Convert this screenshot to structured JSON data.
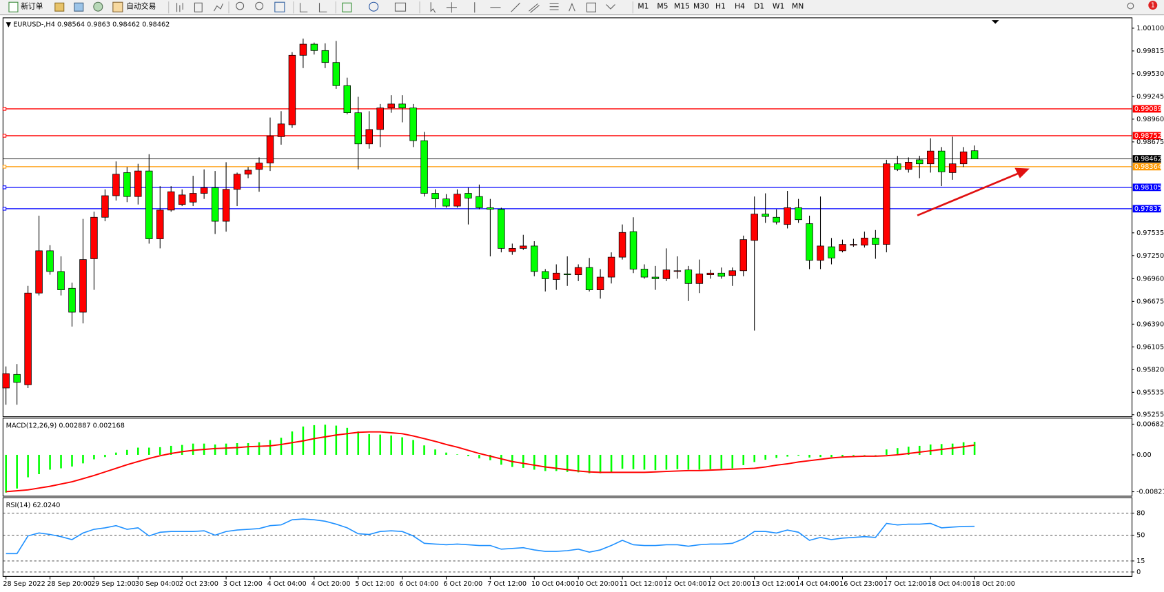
{
  "toolbar": {
    "new_order": "新订单",
    "auto_trading": "自动交易",
    "timeframes": [
      "M1",
      "M5",
      "M15",
      "M30",
      "H1",
      "H4",
      "D1",
      "W1",
      "MN"
    ],
    "badge": 1
  },
  "chart_data": [
    {
      "type": "candlestick",
      "title": "EURUSD-,H4",
      "categories": [
        "28 Sep 2022",
        null,
        null,
        null,
        "28 Sep 20:00",
        null,
        null,
        null,
        "29 Sep 12:00",
        null,
        null,
        null,
        "30 Sep 04:00",
        null,
        null,
        null,
        "2 Oct 23:00",
        null,
        null,
        null,
        "3 Oct 12:00",
        null,
        null,
        null,
        "4 Oct 04:00",
        null,
        null,
        null,
        "4 Oct 20:00",
        null,
        null,
        null,
        "5 Oct 12:00",
        null,
        null,
        null,
        "6 Oct 04:00",
        null,
        null,
        null,
        "6 Oct 20:00",
        null,
        null,
        null,
        "7 Oct 12:00",
        null,
        null,
        null,
        "10 Oct 04:00",
        null,
        null,
        null,
        "10 Oct 20:00",
        null,
        null,
        null,
        "11 Oct 12:00",
        null,
        null,
        null,
        "12 Oct 04:00",
        null,
        null,
        null,
        "12 Oct 20:00",
        null,
        null,
        null,
        "13 Oct 12:00",
        null,
        null,
        null,
        "14 Oct 04:00",
        null,
        null,
        null,
        "16 Oct 23:00",
        null,
        null,
        null,
        "17 Oct 12:00",
        null,
        null,
        null,
        "18 Oct 04:00",
        null,
        null,
        null,
        "18 Oct 20:00"
      ],
      "open": [
        0.9559,
        0.9576,
        0.9563,
        0.9678,
        0.9731,
        0.9705,
        0.9684,
        0.9654,
        0.9721,
        0.9773,
        0.98,
        0.9829,
        0.9799,
        0.9831,
        0.9746,
        0.9782,
        0.9789,
        0.9792,
        0.9803,
        0.981,
        0.9768,
        0.9808,
        0.9827,
        0.9833,
        0.9841,
        0.9874,
        0.9889,
        0.9976,
        0.999,
        0.9982,
        0.9967,
        0.9938,
        0.9904,
        0.9865,
        0.9883,
        0.991,
        0.9915,
        0.991,
        0.9869,
        0.9803,
        0.9796,
        0.9787,
        0.9803,
        0.9799,
        0.9785,
        0.9783,
        0.973,
        0.9734,
        0.9737,
        0.9705,
        0.9695,
        0.9702,
        0.9701,
        0.971,
        0.9682,
        0.9698,
        0.9723,
        0.9755,
        0.9708,
        0.9698,
        0.9696,
        0.9706,
        0.9707,
        0.969,
        0.9701,
        0.9703,
        0.97,
        0.9706,
        0.9744,
        0.9777,
        0.9773,
        0.9764,
        0.9785,
        0.9765,
        0.9719,
        0.9736,
        0.9731,
        0.9738,
        0.9738,
        0.9747,
        0.9739,
        0.984,
        0.9833,
        0.9845,
        0.984,
        0.9856,
        0.9829,
        0.984,
        0.98564
      ],
      "high": [
        0.9586,
        0.9589,
        0.9687,
        0.9775,
        0.9738,
        0.9724,
        0.9691,
        0.9771,
        0.978,
        0.9808,
        0.9843,
        0.9836,
        0.984,
        0.9852,
        0.9812,
        0.9812,
        0.9808,
        0.9825,
        0.9833,
        0.9831,
        0.9842,
        0.9829,
        0.9836,
        0.9848,
        0.9898,
        0.9906,
        0.998,
        0.9997,
        0.9992,
        0.9991,
        0.9994,
        0.9948,
        0.9924,
        0.9906,
        0.9915,
        0.9926,
        0.9926,
        0.9915,
        0.988,
        0.9808,
        0.9802,
        0.9808,
        0.981,
        0.9814,
        0.9796,
        0.9785,
        0.974,
        0.9751,
        0.9743,
        0.9708,
        0.9714,
        0.9724,
        0.9714,
        0.9722,
        0.9708,
        0.9729,
        0.9764,
        0.9773,
        0.9714,
        0.9712,
        0.9734,
        0.9724,
        0.9712,
        0.972,
        0.9707,
        0.971,
        0.971,
        0.975,
        0.9799,
        0.9803,
        0.9783,
        0.9806,
        0.9796,
        0.9775,
        0.9799,
        0.9747,
        0.9745,
        0.9746,
        0.9755,
        0.9757,
        0.9845,
        0.985,
        0.9848,
        0.985,
        0.9872,
        0.9861,
        0.9874,
        0.9861,
        0.9863
      ],
      "low": [
        0.9538,
        0.9538,
        0.9559,
        0.9675,
        0.9701,
        0.9675,
        0.9636,
        0.964,
        0.9682,
        0.9768,
        0.9794,
        0.9792,
        0.9789,
        0.974,
        0.9734,
        0.978,
        0.9787,
        0.9787,
        0.9796,
        0.9752,
        0.9755,
        0.9787,
        0.9822,
        0.9805,
        0.9831,
        0.9864,
        0.9885,
        0.996,
        0.9977,
        0.996,
        0.9934,
        0.9902,
        0.9833,
        0.9859,
        0.9861,
        0.9904,
        0.9892,
        0.9861,
        0.9799,
        0.9785,
        0.9785,
        0.9785,
        0.9764,
        0.9783,
        0.9724,
        0.9729,
        0.9726,
        0.9732,
        0.9699,
        0.968,
        0.9682,
        0.9687,
        0.9693,
        0.968,
        0.9671,
        0.969,
        0.972,
        0.9703,
        0.9696,
        0.9682,
        0.9693,
        0.9696,
        0.9668,
        0.9678,
        0.9696,
        0.9696,
        0.9687,
        0.9699,
        0.9631,
        0.9766,
        0.9764,
        0.9759,
        0.9766,
        0.9708,
        0.9708,
        0.9714,
        0.9729,
        0.9736,
        0.9735,
        0.9721,
        0.9729,
        0.9831,
        0.9829,
        0.9822,
        0.9829,
        0.9812,
        0.982,
        0.9836,
        0.98462
      ],
      "close": [
        0.9577,
        0.9566,
        0.9678,
        0.9731,
        0.9705,
        0.9682,
        0.9654,
        0.972,
        0.9773,
        0.98,
        0.9827,
        0.9799,
        0.9831,
        0.9746,
        0.9782,
        0.9805,
        0.9801,
        0.9803,
        0.981,
        0.9768,
        0.9808,
        0.9827,
        0.9832,
        0.9841,
        0.9875,
        0.989,
        0.9976,
        0.999,
        0.9982,
        0.9967,
        0.9938,
        0.9904,
        0.9865,
        0.9883,
        0.991,
        0.9915,
        0.991,
        0.9869,
        0.9803,
        0.9796,
        0.9787,
        0.9802,
        0.9797,
        0.9785,
        0.9783,
        0.9734,
        0.9734,
        0.9737,
        0.9705,
        0.9696,
        0.9703,
        0.9701,
        0.971,
        0.9682,
        0.9698,
        0.9723,
        0.9754,
        0.9708,
        0.9698,
        0.9696,
        0.9707,
        0.9706,
        0.969,
        0.9702,
        0.9703,
        0.9699,
        0.9706,
        0.9745,
        0.9777,
        0.9774,
        0.9767,
        0.9785,
        0.977,
        0.9719,
        0.9737,
        0.9722,
        0.9739,
        0.9739,
        0.9747,
        0.9739,
        0.984,
        0.9833,
        0.9842,
        0.984,
        0.9856,
        0.983,
        0.984,
        0.9855,
        0.98462
      ],
      "up_color": "#ff0000",
      "down_color": "#00ff00",
      "bid_line_color": "#000000",
      "levels": [
        {
          "value": 0.99089,
          "color": "#ff0000"
        },
        {
          "value": 0.98752,
          "color": "#ff0000"
        },
        {
          "value": 0.98364,
          "color": "#ff9900"
        },
        {
          "value": 0.98105,
          "color": "#0000ff"
        },
        {
          "value": 0.97837,
          "color": "#0000ff"
        }
      ],
      "ylim": [
        0.9523,
        1.0023
      ],
      "yticks": [
        {
          "value": 1.001,
          "label": "1.00100"
        },
        0.99815,
        {
          "value": 0.9953,
          "label": "0.99530"
        },
        0.99245,
        {
          "value": 0.9896,
          "label": "0.98960"
        },
        0.98675,
        0.97535,
        {
          "value": 0.9725,
          "label": "0.97250"
        },
        {
          "value": 0.9696,
          "label": "0.96960"
        },
        0.96675,
        {
          "value": 0.9639,
          "label": "0.96390"
        },
        0.96105,
        {
          "value": 0.9582,
          "label": "0.95820"
        },
        0.95535,
        0.95255
      ]
    },
    {
      "type": "macd",
      "title": "MACD(12,26,9)",
      "series": [
        {
          "color": "#00ff00",
          "values": [
            -0.0084,
            -0.0075,
            -0.005,
            -0.0043,
            -0.0033,
            -0.003,
            -0.0026,
            -0.0019,
            -0.001,
            -0.0005,
            0.0005,
            0.0011,
            0.0016,
            0.0016,
            0.0017,
            0.002,
            0.0022,
            0.0025,
            0.0025,
            0.0023,
            0.0025,
            0.0026,
            0.0026,
            0.0028,
            0.0033,
            0.0038,
            0.0052,
            0.0063,
            0.0066,
            0.0067,
            0.0065,
            0.006,
            0.0052,
            0.0046,
            0.0045,
            0.0043,
            0.0039,
            0.0033,
            0.0021,
            0.0012,
            0.0005,
            0.0001,
            -0.0003,
            -0.0008,
            -0.0012,
            -0.0022,
            -0.0027,
            -0.0029,
            -0.0033,
            -0.0036,
            -0.0036,
            -0.0038,
            -0.0039,
            -0.0041,
            -0.0041,
            -0.0038,
            -0.0031,
            -0.0032,
            -0.0033,
            -0.0034,
            -0.0033,
            -0.0032,
            -0.0033,
            -0.0033,
            -0.0032,
            -0.0031,
            -0.003,
            -0.0023,
            -0.0016,
            -0.0011,
            -0.0007,
            -0.0004,
            -0.0002,
            -0.0006,
            -0.0005,
            -0.0005,
            -0.0004,
            -0.0002,
            -0.0001,
            0,
            0.0012,
            0.0015,
            0.0018,
            0.002,
            0.0023,
            0.0024,
            0.0025,
            0.0028,
            0.002887
          ]
        },
        {
          "color": "#ff0000",
          "values": [
            -0.0082,
            -0.008,
            -0.0078,
            -0.0074,
            -0.007,
            -0.0065,
            -0.006,
            -0.0053,
            -0.0046,
            -0.0038,
            -0.003,
            -0.0022,
            -0.0015,
            -0.0008,
            -0.0002,
            0.0003,
            0.0007,
            0.001,
            0.0012,
            0.0014,
            0.0015,
            0.0016,
            0.0018,
            0.0019,
            0.002,
            0.0023,
            0.0027,
            0.0031,
            0.0036,
            0.004,
            0.0044,
            0.0047,
            0.005,
            0.0051,
            0.0051,
            0.0049,
            0.0047,
            0.0042,
            0.0036,
            0.003,
            0.0023,
            0.0017,
            0.001,
            0.0003,
            -0.0003,
            -0.0009,
            -0.0015,
            -0.0019,
            -0.0023,
            -0.0027,
            -0.003,
            -0.0033,
            -0.0036,
            -0.0038,
            -0.0039,
            -0.0039,
            -0.0039,
            -0.0039,
            -0.0039,
            -0.0038,
            -0.0037,
            -0.0036,
            -0.0035,
            -0.0035,
            -0.0034,
            -0.0033,
            -0.0032,
            -0.0031,
            -0.003,
            -0.0027,
            -0.0023,
            -0.002,
            -0.0016,
            -0.0013,
            -0.001,
            -0.0007,
            -0.0005,
            -0.0004,
            -0.0003,
            -0.0003,
            -0.0002,
            0,
            0.0003,
            0.0006,
            0.0009,
            0.0012,
            0.0015,
            0.0018,
            0.002168
          ]
        }
      ],
      "ylim": [
        -0.0092,
        0.00815
      ],
      "yticks": [
        0.006825,
        {
          "value": 0,
          "label": "0.00"
        },
        -0.008212
      ]
    },
    {
      "type": "line",
      "title": "RSI(14)",
      "color": "#1e90ff",
      "values": [
        25,
        25,
        49,
        53,
        51,
        48,
        44,
        53,
        58,
        60,
        63,
        58,
        60,
        49,
        54,
        55,
        55,
        55,
        56,
        50,
        55,
        57,
        58,
        59,
        63,
        64,
        71,
        72,
        71,
        69,
        65,
        60,
        52,
        51,
        55,
        56,
        55,
        49,
        39,
        38,
        37,
        38,
        37,
        36,
        36,
        31,
        32,
        33,
        30,
        28,
        28,
        29,
        31,
        27,
        30,
        36,
        43,
        37,
        36,
        36,
        37,
        37,
        35,
        37,
        38,
        38,
        39,
        45,
        55,
        55,
        53,
        57,
        54,
        43,
        47,
        44,
        46,
        47,
        48,
        47,
        66,
        64,
        65,
        65,
        66,
        60,
        61,
        62,
        62.024
      ],
      "value_labels": [
        null,
        null,
        null,
        null,
        null,
        null,
        null,
        null,
        null,
        null,
        null,
        null,
        null,
        null,
        null,
        null,
        null,
        null,
        null,
        null,
        null,
        null,
        null,
        null,
        null,
        null,
        null,
        null,
        null,
        null,
        null,
        null,
        null,
        null,
        null,
        null,
        null,
        null,
        null,
        null,
        null,
        null,
        null,
        null,
        null,
        null,
        null,
        null,
        null,
        null,
        null,
        null,
        null,
        null,
        null,
        null,
        null,
        null,
        null,
        null,
        null,
        null,
        null,
        null,
        null,
        null,
        null,
        null,
        null,
        null,
        null,
        null,
        null,
        null,
        null,
        null,
        null,
        null,
        null,
        null,
        null,
        null,
        null,
        null,
        null,
        null,
        null,
        null,
        "62.0240"
      ],
      "ylim": [
        -6,
        101
      ],
      "yticks": [
        80,
        50,
        15,
        0
      ],
      "grid": "dashed"
    }
  ]
}
